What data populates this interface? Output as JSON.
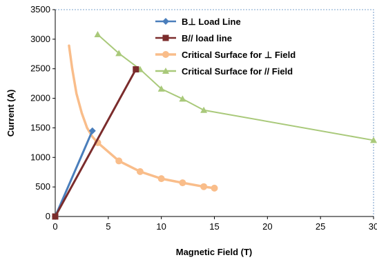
{
  "chart_data": {
    "type": "line",
    "xlabel": "Magnetic Field (T)",
    "ylabel": "Current (A)",
    "xlim": [
      0,
      30
    ],
    "ylim": [
      0,
      3500
    ],
    "x_ticks": [
      0,
      5,
      10,
      15,
      20,
      25,
      30
    ],
    "y_ticks": [
      0,
      500,
      1000,
      1500,
      2000,
      2500,
      3000,
      3500
    ],
    "grid": false,
    "legend_position": "top-right",
    "series": [
      {
        "name": "B⊥ Load Line",
        "color": "#4a7ebb",
        "marker": "diamond",
        "x": [
          0,
          3.5
        ],
        "y": [
          0,
          1450
        ]
      },
      {
        "name": "B// load line",
        "color": "#7b2c2c",
        "marker": "square",
        "x": [
          0,
          7.6
        ],
        "y": [
          0,
          2490
        ]
      },
      {
        "name": "Critical Surface for ⊥ Field",
        "color": "#f9bd8a",
        "marker": "circle",
        "curve_x": [
          1.3,
          1.6,
          2.0,
          2.5,
          3.0,
          3.5,
          4.0
        ],
        "curve_y": [
          2890,
          2500,
          2080,
          1750,
          1500,
          1350,
          1250
        ],
        "x": [
          4,
          6,
          8,
          10,
          12,
          14,
          15
        ],
        "y": [
          1250,
          940,
          760,
          640,
          570,
          505,
          480
        ]
      },
      {
        "name": "Critical Surface for // Field",
        "color": "#a9c97a",
        "marker": "triangle",
        "x": [
          4,
          6,
          8,
          10,
          12,
          14,
          30
        ],
        "y": [
          3080,
          2760,
          2490,
          2160,
          1990,
          1800,
          1290
        ]
      }
    ]
  }
}
